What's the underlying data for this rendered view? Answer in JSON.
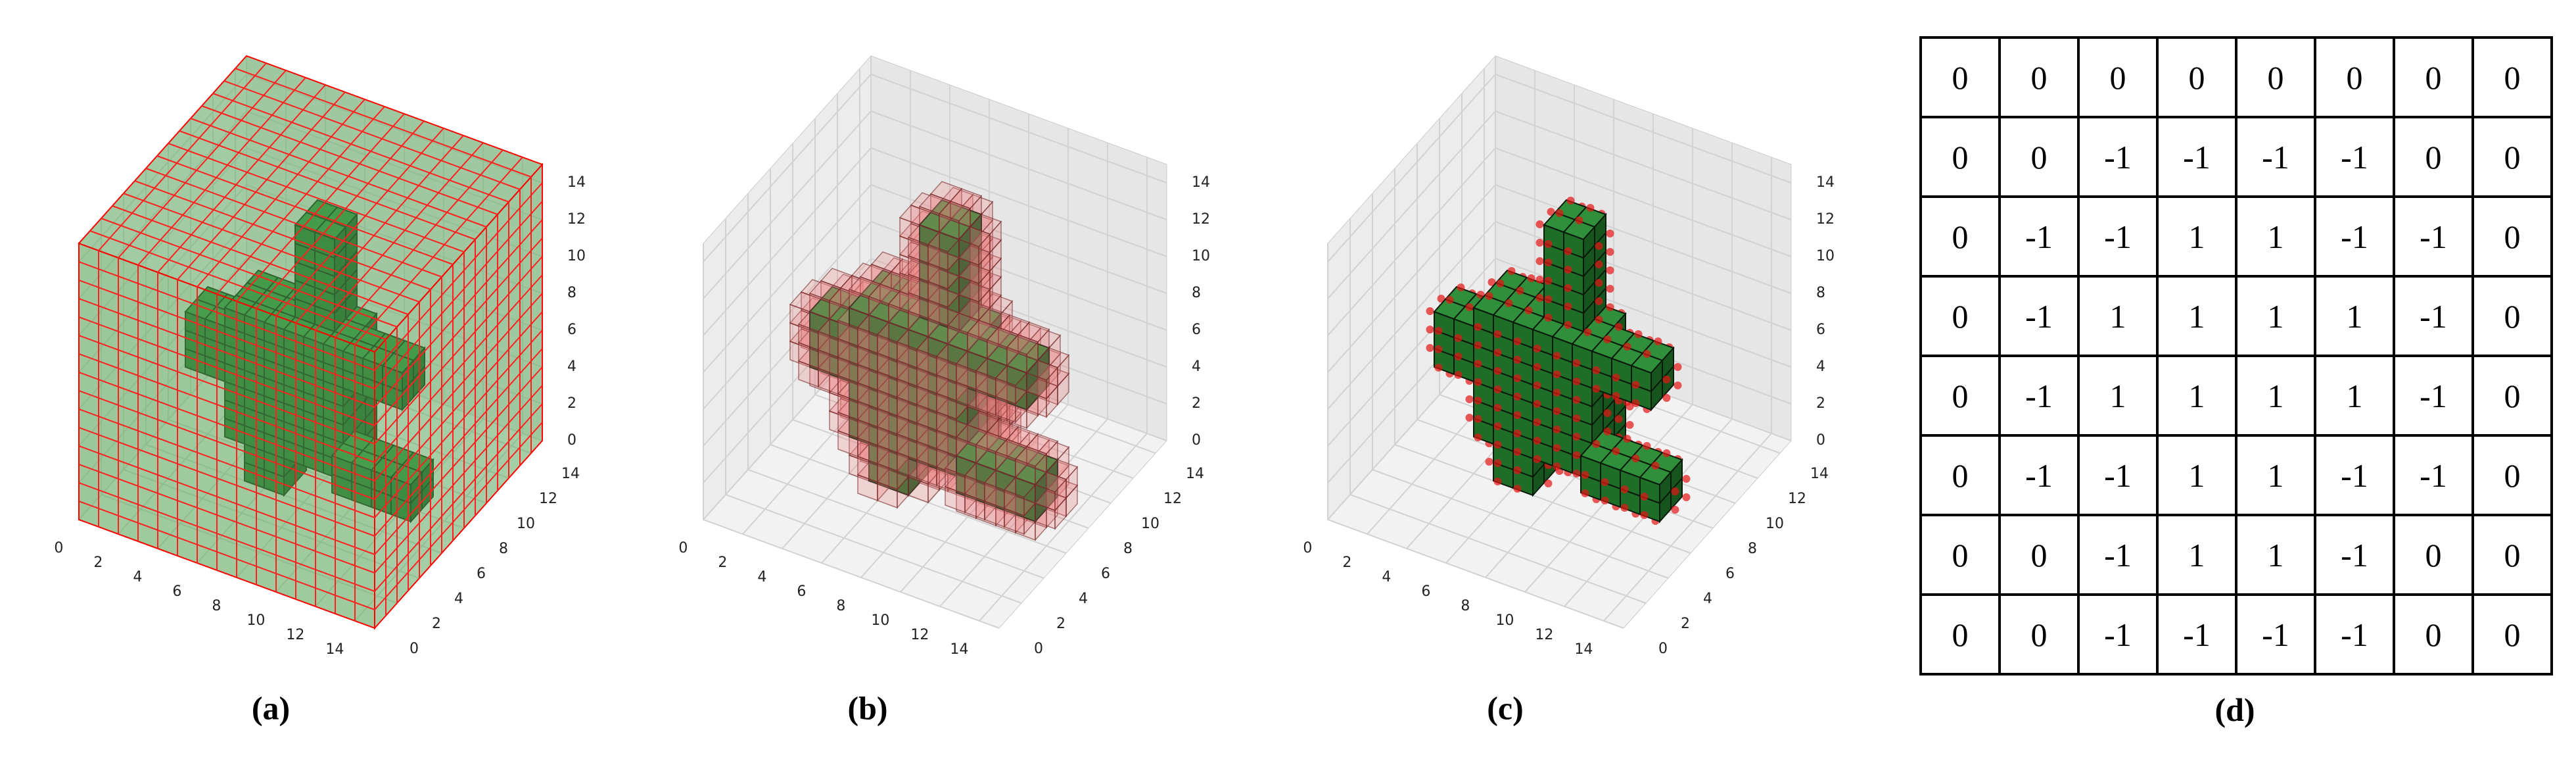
{
  "panels": [
    {
      "caption": "(a)",
      "x_ticks": [
        0,
        2,
        4,
        6,
        8,
        10,
        12,
        14
      ],
      "y_ticks": [
        0,
        2,
        4,
        6,
        8,
        10,
        12,
        14
      ],
      "z_ticks": [
        0,
        2,
        4,
        6,
        8,
        10,
        12,
        14
      ]
    },
    {
      "caption": "(b)",
      "x_ticks": [
        0,
        2,
        4,
        6,
        8,
        10,
        12,
        14
      ],
      "y_ticks": [
        0,
        2,
        4,
        6,
        8,
        10,
        12,
        14
      ],
      "z_ticks": [
        0,
        2,
        4,
        6,
        8,
        10,
        12,
        14
      ]
    },
    {
      "caption": "(c)",
      "x_ticks": [
        0,
        2,
        4,
        6,
        8,
        10,
        12,
        14
      ],
      "y_ticks": [
        0,
        2,
        4,
        6,
        8,
        10,
        12,
        14
      ],
      "z_ticks": [
        0,
        2,
        4,
        6,
        8,
        10,
        12,
        14
      ]
    }
  ],
  "table": {
    "caption": "(d)",
    "rows": [
      [
        0,
        0,
        0,
        0,
        0,
        0,
        0,
        0
      ],
      [
        0,
        0,
        -1,
        -1,
        -1,
        -1,
        0,
        0
      ],
      [
        0,
        -1,
        -1,
        1,
        1,
        -1,
        -1,
        0
      ],
      [
        0,
        -1,
        1,
        1,
        1,
        1,
        -1,
        0
      ],
      [
        0,
        -1,
        1,
        1,
        1,
        1,
        -1,
        0
      ],
      [
        0,
        -1,
        -1,
        1,
        1,
        -1,
        -1,
        0
      ],
      [
        0,
        0,
        -1,
        1,
        1,
        -1,
        0,
        0
      ],
      [
        0,
        0,
        -1,
        -1,
        -1,
        -1,
        0,
        0
      ]
    ]
  }
}
